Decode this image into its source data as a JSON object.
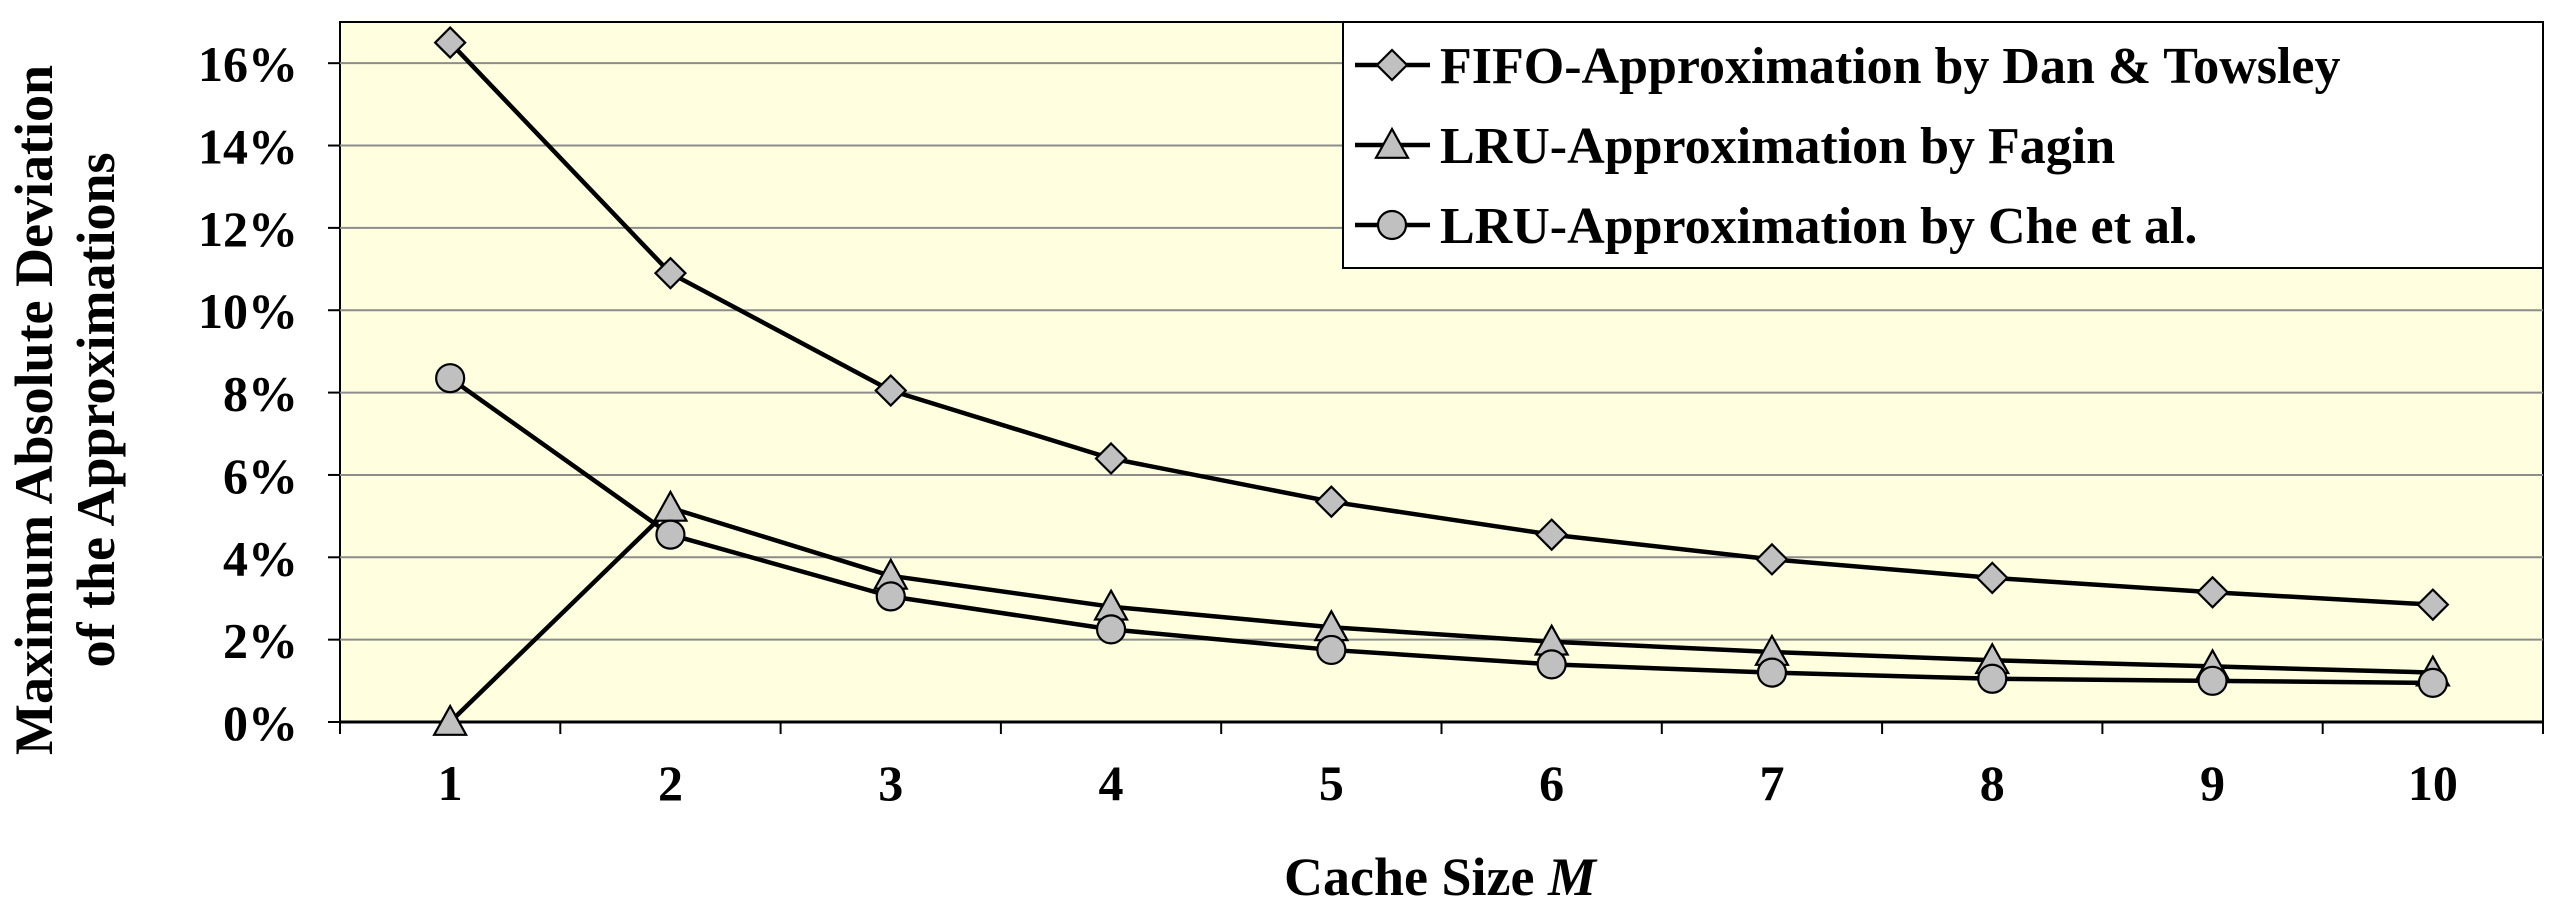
{
  "chart_data": {
    "type": "line",
    "title": "",
    "xlabel_main": "Cache Size ",
    "xlabel_var": "M",
    "ylabel_line1": "Maximum Absolute Deviation",
    "ylabel_line2": "of the Approximations",
    "x": [
      1,
      2,
      3,
      4,
      5,
      6,
      7,
      8,
      9,
      10
    ],
    "x_tick_labels": [
      "1",
      "2",
      "3",
      "4",
      "5",
      "6",
      "7",
      "8",
      "9",
      "10"
    ],
    "y_ticks": [
      0,
      2,
      4,
      6,
      8,
      10,
      12,
      14,
      16
    ],
    "y_tick_labels": [
      "0%",
      "2%",
      "4%",
      "6%",
      "8%",
      "10%",
      "12%",
      "14%",
      "16%"
    ],
    "ylim": [
      0,
      17
    ],
    "xlim": [
      0.5,
      10.5
    ],
    "y_unit": "%",
    "grid": "horizontal",
    "legend_position": "top-right",
    "colors": {
      "plot_background": "#ffffe0",
      "gridline": "#8c8c8c",
      "line": "#000000",
      "marker_fill": "#c0c0c0"
    },
    "series": [
      {
        "name": "FIFO-Approximation by Dan & Towsley",
        "marker": "diamond",
        "values": [
          16.5,
          10.9,
          8.05,
          6.4,
          5.35,
          4.55,
          3.95,
          3.5,
          3.15,
          2.85
        ]
      },
      {
        "name": "LRU-Approximation by Fagin",
        "marker": "triangle",
        "values": [
          0.0,
          5.2,
          3.55,
          2.8,
          2.3,
          1.95,
          1.7,
          1.5,
          1.35,
          1.2
        ]
      },
      {
        "name": "LRU-Approximation by Che et al.",
        "marker": "circle",
        "values": [
          8.35,
          4.55,
          3.05,
          2.25,
          1.75,
          1.4,
          1.2,
          1.05,
          1.0,
          0.95
        ]
      }
    ]
  }
}
